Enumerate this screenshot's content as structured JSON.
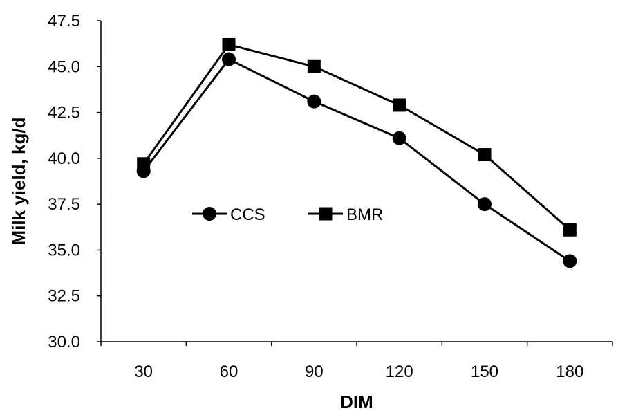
{
  "chart_data": {
    "type": "line",
    "title": "",
    "xlabel": "DIM",
    "ylabel": "Milk yield, kg/d",
    "categories": [
      "30",
      "60",
      "90",
      "120",
      "150",
      "180"
    ],
    "ylim": [
      30.0,
      47.5
    ],
    "yticks": [
      "30.0",
      "32.5",
      "35.0",
      "37.5",
      "40.0",
      "42.5",
      "45.0",
      "47.5"
    ],
    "grid": false,
    "legend_position": "center-left, inside plot",
    "series": [
      {
        "name": "CCS",
        "marker": "circle",
        "color": "#000000",
        "values": [
          39.3,
          45.4,
          43.1,
          41.1,
          37.5,
          34.4
        ]
      },
      {
        "name": "BMR",
        "marker": "square",
        "color": "#000000",
        "values": [
          39.7,
          46.2,
          45.0,
          42.9,
          40.2,
          36.1
        ]
      }
    ]
  }
}
